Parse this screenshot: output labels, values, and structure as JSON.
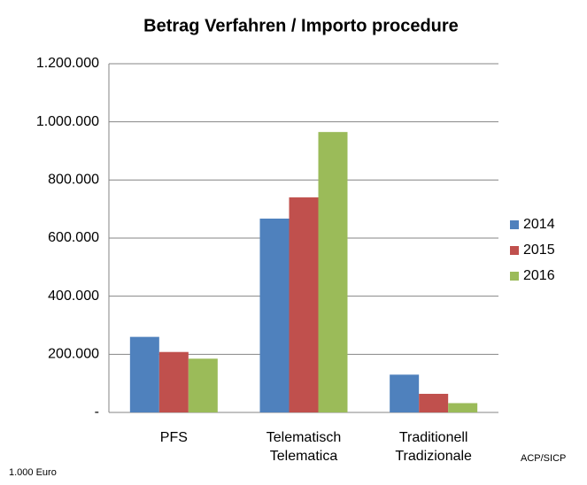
{
  "chart_data": {
    "type": "bar",
    "title": "Betrag Verfahren / Importo procedure",
    "categories": [
      "PFS",
      "Telematisch\nTelematica",
      "Traditionell\nTradizionale"
    ],
    "series": [
      {
        "name": "2014",
        "color": "#4f81bd",
        "values": [
          260000,
          667000,
          130000
        ]
      },
      {
        "name": "2015",
        "color": "#c0504d",
        "values": [
          208000,
          740000,
          64000
        ]
      },
      {
        "name": "2016",
        "color": "#9bbb59",
        "values": [
          185000,
          965000,
          32000
        ]
      }
    ],
    "ylim": [
      0,
      1200000
    ],
    "yticks": [
      {
        "value": 0,
        "label": "-"
      },
      {
        "value": 200000,
        "label": "200.000"
      },
      {
        "value": 400000,
        "label": "400.000"
      },
      {
        "value": 600000,
        "label": "600.000"
      },
      {
        "value": 800000,
        "label": "800.000"
      },
      {
        "value": 1000000,
        "label": "1.000.000"
      },
      {
        "value": 1200000,
        "label": "1.200.000"
      }
    ],
    "grid": true,
    "legend": "right",
    "unit_note": "1.000 Euro",
    "source": "ACP/SICP"
  }
}
